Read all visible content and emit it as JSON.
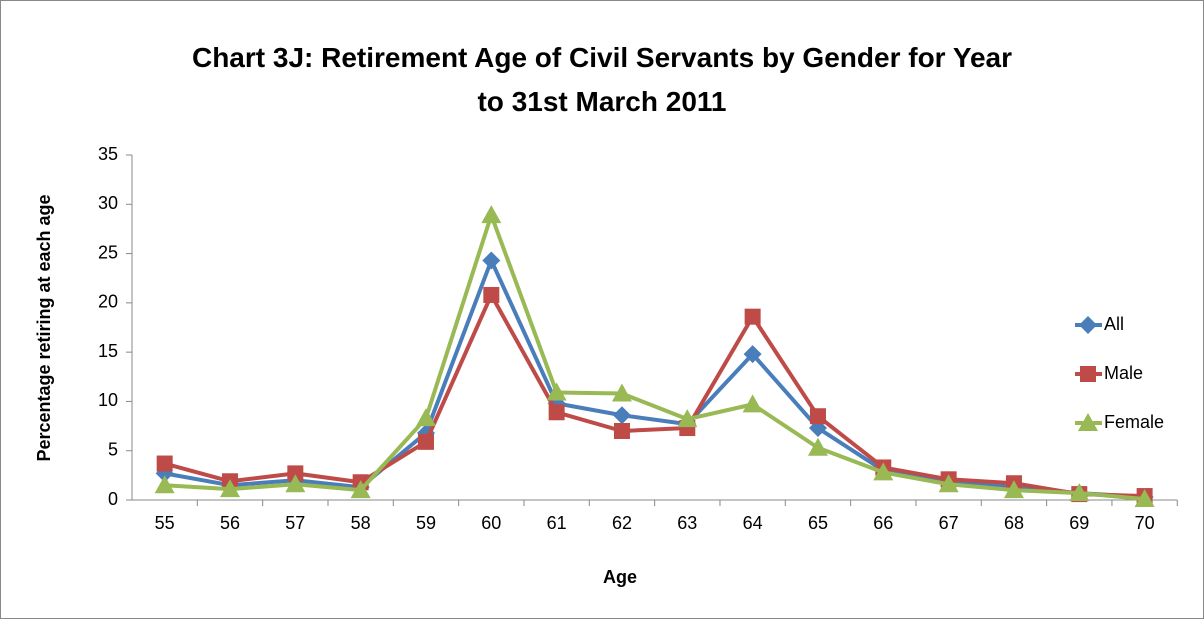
{
  "chart_data": {
    "type": "line",
    "title": "Chart 3J: Retirement Age of Civil Servants by Gender for Year\nto 31st March 2011",
    "x_label": "Age",
    "y_label": "Percentage retiring at each age",
    "categories": [
      "55",
      "56",
      "57",
      "58",
      "59",
      "60",
      "61",
      "62",
      "63",
      "64",
      "65",
      "66",
      "67",
      "68",
      "69",
      "70"
    ],
    "series": [
      {
        "name": "All",
        "color": "#4a7ebb",
        "marker": "diamond",
        "values": [
          2.7,
          1.5,
          2.0,
          1.3,
          6.8,
          24.3,
          9.8,
          8.6,
          7.7,
          14.8,
          7.3,
          3.0,
          1.8,
          1.3,
          0.7,
          0.3
        ]
      },
      {
        "name": "Male",
        "color": "#be4b48",
        "marker": "square",
        "values": [
          3.7,
          1.9,
          2.7,
          1.8,
          5.9,
          20.8,
          8.9,
          7.0,
          7.3,
          18.6,
          8.5,
          3.3,
          2.1,
          1.7,
          0.6,
          0.4
        ]
      },
      {
        "name": "Female",
        "color": "#98b954",
        "marker": "triangle",
        "values": [
          1.5,
          1.1,
          1.6,
          1.0,
          8.3,
          28.9,
          10.9,
          10.8,
          8.2,
          9.7,
          5.3,
          2.8,
          1.6,
          1.0,
          0.7,
          0.1
        ]
      }
    ],
    "ylim": [
      0,
      35
    ],
    "yticks": [
      0,
      5,
      10,
      15,
      20,
      25,
      30,
      35
    ],
    "grid": false,
    "legend": "right"
  }
}
